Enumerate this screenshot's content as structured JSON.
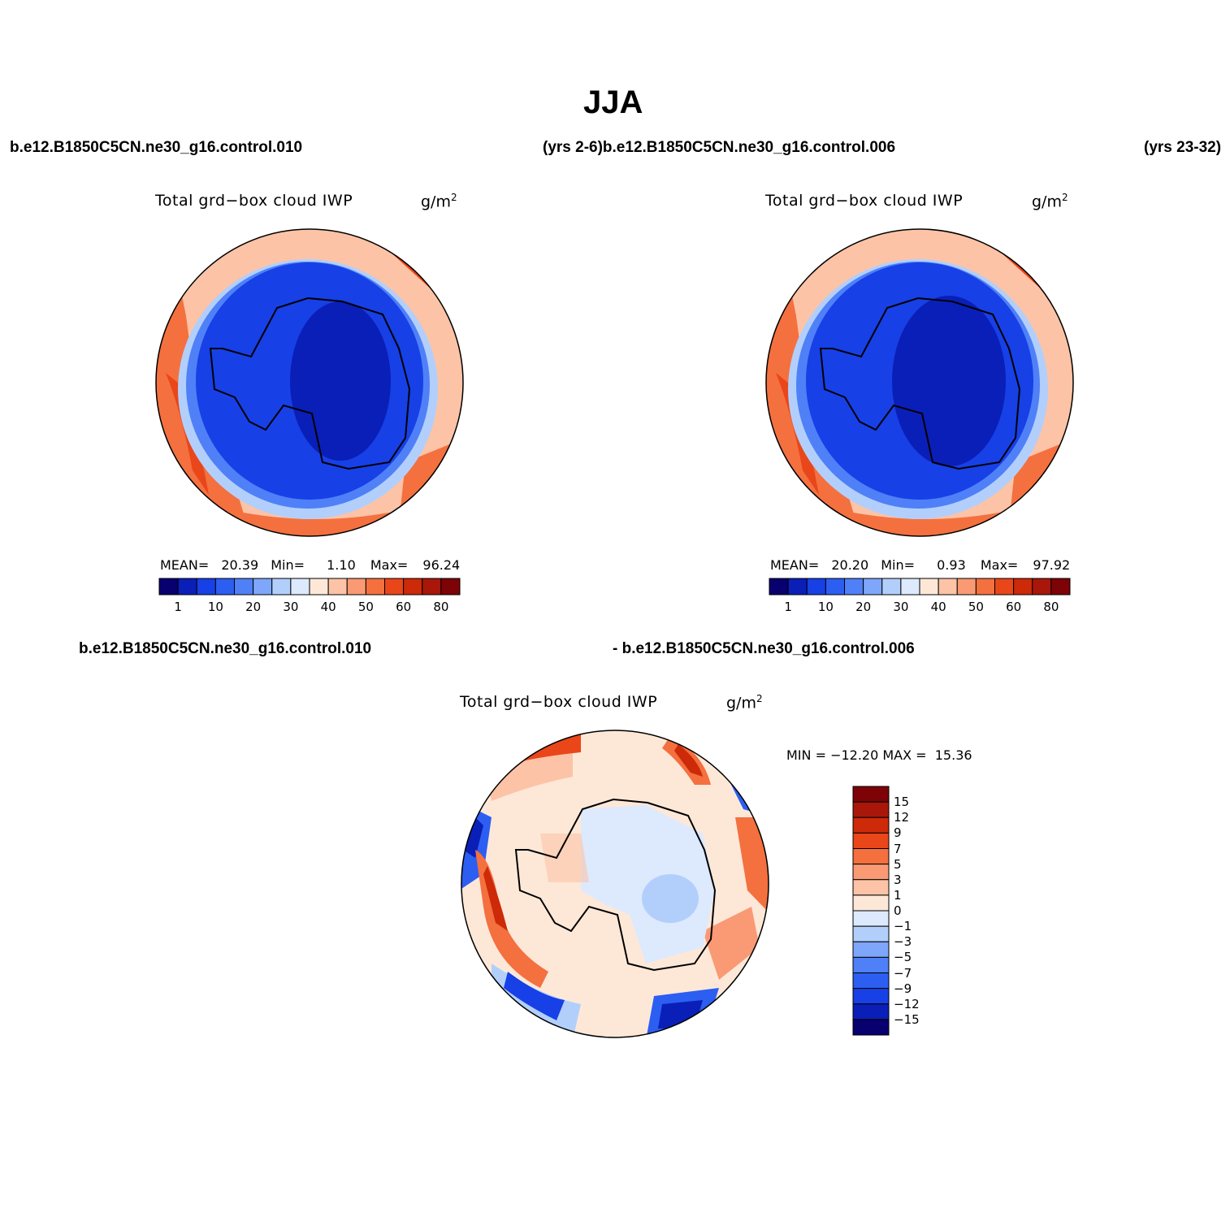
{
  "title": "JJA",
  "case_labels": {
    "top_left_case": "b.e12.B1850C5CN.ne30_g16.control.010",
    "top_mid": "(yrs 2-6)b.e12.B1850C5CN.ne30_g16.control.006",
    "top_right": "(yrs 23-32)",
    "bottom_left_case": "b.e12.B1850C5CN.ne30_g16.control.010",
    "bottom_right_case": "- b.e12.B1850C5CN.ne30_g16.control.006"
  },
  "panels": [
    {
      "id": "case1",
      "title": "Total grd−box cloud IWP",
      "units": "g/m",
      "units_sup": "2",
      "stats": {
        "mean_label": "MEAN=",
        "mean": "20.39",
        "min_label": "Min=",
        "min": "1.10",
        "max_label": "Max=",
        "max": "96.24"
      }
    },
    {
      "id": "case2",
      "title": "Total grd−box cloud IWP",
      "units": "g/m",
      "units_sup": "2",
      "stats": {
        "mean_label": "MEAN=",
        "mean": "20.20",
        "min_label": "Min=",
        "min": "0.93",
        "max_label": "Max=",
        "max": "97.92"
      }
    },
    {
      "id": "difference",
      "title": "Total grd−box cloud IWP",
      "units": "g/m",
      "units_sup": "2",
      "stats": {
        "text": "MIN = −12.20 MAX =  15.36"
      }
    }
  ],
  "chart_data": [
    {
      "type": "heatmap",
      "name": "case1",
      "projection": "south-polar stereographic",
      "colorbar": {
        "orientation": "horizontal",
        "tick_labels": [
          "1",
          "10",
          "20",
          "30",
          "40",
          "50",
          "60",
          "80"
        ],
        "colors": [
          "#08006e",
          "#0a1fb8",
          "#1740e6",
          "#2c5ef2",
          "#4f80f7",
          "#7ea6fa",
          "#b2cffc",
          "#dde9fd",
          "#fde8d8",
          "#fcc3a6",
          "#f99a75",
          "#f4703f",
          "#e9461a",
          "#cc2a08",
          "#a8170a",
          "#7d0306"
        ]
      }
    },
    {
      "type": "heatmap",
      "name": "case2",
      "projection": "south-polar stereographic",
      "colorbar": {
        "orientation": "horizontal",
        "tick_labels": [
          "1",
          "10",
          "20",
          "30",
          "40",
          "50",
          "60",
          "80"
        ],
        "colors": [
          "#08006e",
          "#0a1fb8",
          "#1740e6",
          "#2c5ef2",
          "#4f80f7",
          "#7ea6fa",
          "#b2cffc",
          "#dde9fd",
          "#fde8d8",
          "#fcc3a6",
          "#f99a75",
          "#f4703f",
          "#e9461a",
          "#cc2a08",
          "#a8170a",
          "#7d0306"
        ]
      }
    },
    {
      "type": "heatmap",
      "name": "difference",
      "projection": "south-polar stereographic",
      "colorbar": {
        "orientation": "vertical",
        "tick_labels": [
          "15",
          "12",
          "9",
          "7",
          "5",
          "3",
          "1",
          "0",
          "−1",
          "−3",
          "−5",
          "−7",
          "−9",
          "−12",
          "−15"
        ],
        "colors": [
          "#7d0306",
          "#a8170a",
          "#cc2a08",
          "#e9461a",
          "#f4703f",
          "#f99a75",
          "#fcc3a6",
          "#fde8d8",
          "#dde9fd",
          "#b2cffc",
          "#7ea6fa",
          "#4f80f7",
          "#2c5ef2",
          "#1740e6",
          "#0a1fb8",
          "#08006e"
        ]
      }
    }
  ]
}
